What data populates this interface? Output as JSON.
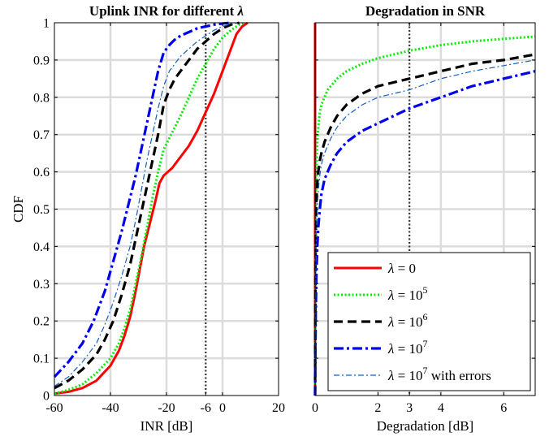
{
  "chart_data": [
    {
      "type": "line",
      "title": "Uplink INR for different λ",
      "xlabel": "INR [dB]",
      "ylabel": "CDF",
      "xlim": [
        -60,
        20
      ],
      "ylim": [
        0,
        1
      ],
      "xticks": [
        -60,
        -40,
        -20,
        -6,
        0,
        20
      ],
      "xtick_labels": [
        "-60",
        "-40",
        "-20",
        "-6",
        "0",
        "20"
      ],
      "yticks": [
        0,
        0.1,
        0.2,
        0.3,
        0.4,
        0.5,
        0.6,
        0.7,
        0.8,
        0.9,
        1
      ],
      "ytick_labels": [
        "0",
        "0.1",
        "0.2",
        "0.3",
        "0.4",
        "0.5",
        "0.6",
        "0.7",
        "0.8",
        "0.9",
        "1"
      ],
      "grid": true,
      "reference_line_x": -6,
      "series": [
        {
          "key": "l0",
          "color": "#ff0000",
          "x": [
            -60,
            -55,
            -50,
            -45,
            -40,
            -37,
            -35,
            -33,
            -31,
            -29.5,
            -28,
            -26,
            -24,
            -22.5,
            -21,
            -18,
            -15,
            -12,
            -9,
            -6,
            -3,
            0,
            3,
            5,
            7,
            9
          ],
          "y": [
            0.005,
            0.01,
            0.02,
            0.04,
            0.08,
            0.12,
            0.16,
            0.21,
            0.28,
            0.34,
            0.4,
            0.46,
            0.52,
            0.57,
            0.59,
            0.61,
            0.64,
            0.67,
            0.71,
            0.76,
            0.81,
            0.87,
            0.93,
            0.97,
            0.99,
            1.0
          ]
        },
        {
          "key": "l5",
          "color": "#00ee00",
          "x": [
            -60,
            -55,
            -50,
            -45,
            -40,
            -37,
            -35,
            -33,
            -31,
            -29,
            -27,
            -25,
            -23,
            -21,
            -19,
            -17,
            -15,
            -12,
            -9,
            -6,
            -3,
            0,
            3,
            6,
            8
          ],
          "y": [
            0.005,
            0.015,
            0.03,
            0.06,
            0.1,
            0.14,
            0.18,
            0.23,
            0.3,
            0.37,
            0.45,
            0.53,
            0.6,
            0.66,
            0.69,
            0.72,
            0.75,
            0.8,
            0.85,
            0.89,
            0.93,
            0.96,
            0.98,
            0.995,
            1.0
          ]
        },
        {
          "key": "l6",
          "color": "#000000",
          "x": [
            -60,
            -55,
            -50,
            -45,
            -42,
            -39,
            -36,
            -33,
            -31,
            -29,
            -27,
            -25,
            -23,
            -21,
            -19,
            -17,
            -15,
            -12,
            -9,
            -6,
            -3,
            0,
            3,
            6
          ],
          "y": [
            0.02,
            0.04,
            0.07,
            0.11,
            0.15,
            0.2,
            0.27,
            0.35,
            0.42,
            0.49,
            0.56,
            0.63,
            0.7,
            0.78,
            0.82,
            0.85,
            0.87,
            0.9,
            0.93,
            0.95,
            0.97,
            0.985,
            0.995,
            1.0
          ]
        },
        {
          "key": "l7",
          "color": "#0000ee",
          "x": [
            -60,
            -55,
            -50,
            -46,
            -42,
            -39,
            -36,
            -33,
            -31,
            -29,
            -27,
            -25,
            -23,
            -21,
            -19,
            -17,
            -15,
            -12,
            -9,
            -6,
            -3,
            0,
            3
          ],
          "y": [
            0.05,
            0.09,
            0.14,
            0.2,
            0.28,
            0.36,
            0.44,
            0.53,
            0.59,
            0.66,
            0.73,
            0.8,
            0.87,
            0.92,
            0.94,
            0.955,
            0.965,
            0.975,
            0.985,
            0.99,
            0.995,
            0.998,
            1.0
          ]
        },
        {
          "key": "l7e",
          "color": "#1560bd",
          "x": [
            -60,
            -55,
            -50,
            -45,
            -42,
            -39,
            -36,
            -33,
            -31,
            -29,
            -27,
            -25,
            -23,
            -21,
            -19,
            -17,
            -15,
            -12,
            -9,
            -6,
            -3,
            0,
            3,
            6
          ],
          "y": [
            0.025,
            0.05,
            0.09,
            0.14,
            0.19,
            0.25,
            0.32,
            0.4,
            0.47,
            0.55,
            0.63,
            0.7,
            0.77,
            0.83,
            0.87,
            0.89,
            0.91,
            0.93,
            0.95,
            0.965,
            0.98,
            0.99,
            0.997,
            1.0
          ]
        }
      ]
    },
    {
      "type": "line",
      "title": "Degradation in SNR",
      "xlabel": "Degradation [dB]",
      "xlim": [
        0,
        7
      ],
      "ylim": [
        0,
        1
      ],
      "xticks": [
        0,
        2,
        3,
        4,
        6
      ],
      "xtick_labels": [
        "0",
        "2",
        "3",
        "4",
        "6"
      ],
      "grid": true,
      "reference_line_x": 3,
      "legend_position": "bottom-right",
      "series": [
        {
          "key": "l0",
          "color": "#ff0000",
          "x": [
            0,
            0
          ],
          "y": [
            0,
            1
          ]
        },
        {
          "key": "l5",
          "color": "#00ee00",
          "x": [
            0,
            0.005,
            0.01,
            0.02,
            0.04,
            0.07,
            0.1,
            0.15,
            0.2,
            0.3,
            0.4,
            0.5,
            0.7,
            1.0,
            1.5,
            2,
            2.5,
            3,
            4,
            5,
            6,
            7
          ],
          "y": [
            0.0,
            0.2,
            0.35,
            0.5,
            0.6,
            0.68,
            0.72,
            0.76,
            0.78,
            0.8,
            0.82,
            0.83,
            0.85,
            0.87,
            0.89,
            0.905,
            0.915,
            0.925,
            0.94,
            0.95,
            0.957,
            0.963
          ]
        },
        {
          "key": "l6",
          "color": "#000000",
          "x": [
            0,
            0.005,
            0.01,
            0.02,
            0.04,
            0.07,
            0.1,
            0.15,
            0.2,
            0.3,
            0.5,
            0.7,
            1.0,
            1.5,
            2,
            2.5,
            3,
            4,
            5,
            6,
            7
          ],
          "y": [
            0.0,
            0.15,
            0.3,
            0.42,
            0.52,
            0.57,
            0.6,
            0.63,
            0.65,
            0.68,
            0.72,
            0.75,
            0.78,
            0.81,
            0.83,
            0.84,
            0.85,
            0.87,
            0.89,
            0.9,
            0.915
          ]
        },
        {
          "key": "l7",
          "color": "#0000ee",
          "x": [
            0,
            0.005,
            0.01,
            0.02,
            0.04,
            0.07,
            0.1,
            0.15,
            0.2,
            0.3,
            0.5,
            0.7,
            1.0,
            1.5,
            2,
            2.5,
            3,
            4,
            5,
            6,
            7
          ],
          "y": [
            0.0,
            0.05,
            0.12,
            0.22,
            0.32,
            0.4,
            0.45,
            0.5,
            0.54,
            0.58,
            0.62,
            0.65,
            0.68,
            0.71,
            0.73,
            0.75,
            0.77,
            0.8,
            0.83,
            0.85,
            0.87
          ]
        },
        {
          "key": "l7e",
          "color": "#1560bd",
          "x": [
            0,
            0.005,
            0.01,
            0.02,
            0.04,
            0.07,
            0.1,
            0.15,
            0.2,
            0.3,
            0.5,
            0.7,
            1.0,
            1.5,
            2,
            2.5,
            3,
            4,
            5,
            6,
            7
          ],
          "y": [
            0.0,
            0.1,
            0.2,
            0.33,
            0.43,
            0.5,
            0.55,
            0.59,
            0.62,
            0.65,
            0.69,
            0.72,
            0.75,
            0.78,
            0.8,
            0.81,
            0.82,
            0.85,
            0.87,
            0.885,
            0.9
          ]
        }
      ]
    }
  ],
  "legend": {
    "l0": {
      "prefix": "λ = 0",
      "sup": "",
      "suffix": ""
    },
    "l5": {
      "prefix": "λ = 10",
      "sup": "5",
      "suffix": ""
    },
    "l6": {
      "prefix": "λ = 10",
      "sup": "6",
      "suffix": ""
    },
    "l7": {
      "prefix": "λ = 10",
      "sup": "7",
      "suffix": ""
    },
    "l7e": {
      "prefix": "λ = 10",
      "sup": "7",
      "suffix": " with errors"
    }
  }
}
